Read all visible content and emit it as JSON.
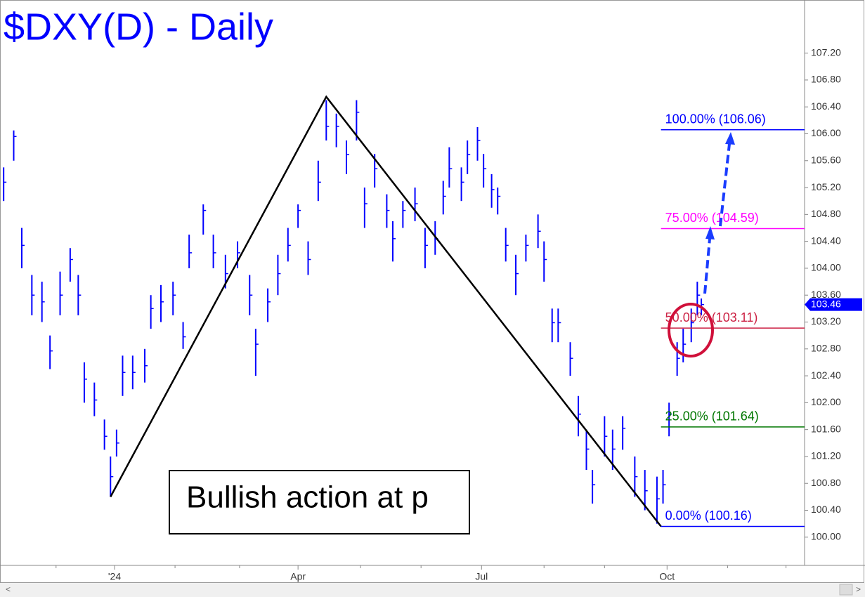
{
  "chart_data": {
    "type": "ohlc",
    "title": "$DXY(D) - Daily",
    "color": "#0000ff",
    "x": [
      -55,
      -50,
      -46,
      -41,
      -36,
      -32,
      -27,
      -22,
      -18,
      -15,
      -10,
      -5,
      -2,
      1,
      4,
      9,
      15,
      18,
      23,
      29,
      34,
      37,
      44,
      49,
      55,
      61,
      67,
      70,
      76,
      81,
      86,
      91,
      96,
      101,
      105,
      110,
      115,
      120,
      124,
      129,
      135,
      138,
      143,
      149,
      154,
      159,
      163,
      166,
      172,
      175,
      180,
      183,
      187,
      190,
      194,
      199,
      204,
      210,
      213,
      217,
      220,
      226,
      230,
      234,
      237,
      243,
      247,
      252,
      258,
      263,
      269,
      272,
      275,
      279,
      282,
      286,
      289,
      291
    ],
    "high": [
      105.5,
      106.05,
      104.6,
      103.9,
      103.8,
      103.0,
      103.95,
      104.3,
      103.9,
      102.6,
      102.3,
      101.75,
      101.2,
      101.6,
      102.7,
      102.7,
      102.8,
      103.6,
      103.75,
      103.8,
      103.2,
      104.5,
      104.95,
      104.5,
      104.2,
      104.4,
      103.9,
      103.1,
      103.7,
      104.2,
      104.6,
      104.95,
      104.4,
      105.6,
      106.5,
      106.3,
      105.9,
      106.5,
      105.2,
      105.7,
      105.1,
      104.7,
      105.0,
      105.2,
      104.6,
      104.7,
      105.3,
      105.8,
      105.5,
      105.9,
      106.1,
      105.7,
      105.4,
      105.2,
      104.6,
      104.2,
      104.5,
      104.8,
      104.4,
      103.4,
      103.4,
      102.9,
      102.1,
      101.6,
      101.0,
      101.8,
      101.6,
      101.8,
      101.2,
      101.0,
      100.9,
      101.0,
      102.0,
      102.9,
      103.1,
      103.4,
      103.8,
      103.55
    ],
    "low": [
      105.0,
      105.6,
      104.0,
      103.3,
      103.2,
      102.5,
      103.3,
      103.8,
      103.3,
      102.0,
      101.8,
      101.3,
      100.6,
      101.2,
      102.1,
      102.2,
      102.3,
      103.1,
      103.2,
      103.3,
      102.8,
      104.0,
      104.5,
      104.0,
      103.7,
      104.0,
      103.3,
      102.4,
      103.2,
      103.6,
      104.1,
      104.6,
      103.9,
      105.0,
      105.9,
      105.8,
      105.4,
      105.9,
      104.6,
      105.2,
      104.6,
      104.1,
      104.6,
      104.7,
      104.0,
      104.2,
      104.8,
      105.2,
      105.0,
      105.4,
      105.6,
      105.2,
      104.9,
      104.8,
      104.1,
      103.6,
      104.1,
      104.3,
      103.8,
      102.9,
      102.9,
      102.4,
      101.5,
      101.0,
      100.5,
      101.2,
      101.0,
      101.3,
      100.6,
      100.4,
      100.2,
      100.5,
      101.5,
      102.4,
      102.6,
      102.9,
      103.3,
      103.3
    ],
    "values": [
      105.28,
      105.96,
      104.34,
      103.6,
      103.5,
      102.77,
      103.6,
      104.13,
      103.6,
      102.35,
      102.04,
      101.5,
      100.9,
      101.4,
      102.45,
      102.45,
      102.55,
      103.4,
      103.5,
      103.6,
      102.98,
      104.23,
      104.86,
      104.23,
      103.92,
      104.23,
      103.6,
      102.87,
      103.5,
      103.92,
      104.34,
      104.86,
      104.13,
      105.28,
      106.11,
      106.11,
      105.69,
      106.32,
      104.96,
      105.48,
      104.86,
      104.44,
      104.86,
      104.96,
      104.34,
      104.44,
      105.07,
      105.48,
      105.28,
      105.69,
      105.9,
      105.48,
      105.17,
      105.07,
      104.34,
      103.92,
      104.34,
      104.55,
      104.13,
      103.19,
      103.19,
      102.66,
      101.83,
      101.31,
      100.78,
      101.5,
      101.31,
      101.62,
      100.9,
      100.69,
      100.57,
      100.78,
      101.83,
      102.66,
      102.87,
      103.19,
      103.6,
      103.46
    ],
    "xlim": [
      -56.8,
      342.2
    ],
    "xticks": [
      {
        "value": 0,
        "label": "'24"
      },
      {
        "value": 91,
        "label": "Apr"
      },
      {
        "value": 182,
        "label": "Jul"
      },
      {
        "value": 274,
        "label": "Oct"
      }
    ],
    "xminor": [
      -29,
      30,
      62,
      122,
      152,
      213,
      243,
      304,
      333
    ],
    "ylim": [
      99.58,
      107.99
    ],
    "yticks": [
      {
        "value": 100,
        "label": "100.00"
      },
      {
        "value": 100.4,
        "label": "100.40"
      },
      {
        "value": 100.8,
        "label": "100.80"
      },
      {
        "value": 101.2,
        "label": "101.20"
      },
      {
        "value": 101.6,
        "label": "101.60"
      },
      {
        "value": 102,
        "label": "102.00"
      },
      {
        "value": 102.4,
        "label": "102.40"
      },
      {
        "value": 102.8,
        "label": "102.80"
      },
      {
        "value": 103.2,
        "label": "103.20"
      },
      {
        "value": 103.6,
        "label": "103.60"
      },
      {
        "value": 104,
        "label": "104.00"
      },
      {
        "value": 104.4,
        "label": "104.40"
      },
      {
        "value": 104.8,
        "label": "104.80"
      },
      {
        "value": 105.2,
        "label": "105.20"
      },
      {
        "value": 105.6,
        "label": "105.60"
      },
      {
        "value": 106,
        "label": "106.00"
      },
      {
        "value": 106.4,
        "label": "106.40"
      },
      {
        "value": 106.8,
        "label": "106.80"
      },
      {
        "value": 107.2,
        "label": "107.20"
      }
    ],
    "zigzag": {
      "x": [
        -2,
        105,
        271
      ],
      "y": [
        100.6,
        106.55,
        100.16
      ]
    },
    "levels": [
      {
        "label": "100.00% (106.06)",
        "value": 106.06,
        "color": "#0000ff"
      },
      {
        "label": "75.00% (104.59)",
        "value": 104.59,
        "color": "#ff00ff"
      },
      {
        "label": "50.00% (103.11)",
        "value": 103.11,
        "color": "#cc2244"
      },
      {
        "label": "25.00% (101.64)",
        "value": 101.64,
        "color": "#007700"
      },
      {
        "label": "0.00% (100.16)",
        "value": 100.16,
        "color": "#0000ff"
      }
    ],
    "levels_start": 271,
    "last": 103.46,
    "annotation": "Bullish action at p"
  }
}
